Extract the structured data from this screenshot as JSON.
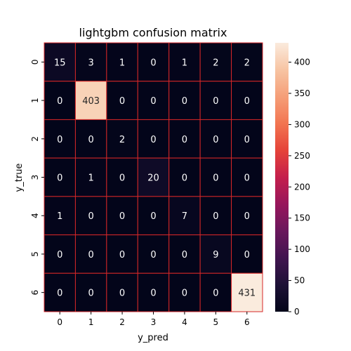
{
  "chart_data": {
    "type": "heatmap",
    "title": "lightgbm confusion matrix",
    "xlabel": "y_pred",
    "ylabel": "y_true",
    "x_categories": [
      "0",
      "1",
      "2",
      "3",
      "4",
      "5",
      "6"
    ],
    "y_categories": [
      "0",
      "1",
      "2",
      "3",
      "4",
      "5",
      "6"
    ],
    "matrix": [
      [
        15,
        3,
        1,
        0,
        1,
        2,
        2
      ],
      [
        0,
        403,
        0,
        0,
        0,
        0,
        0
      ],
      [
        0,
        0,
        2,
        0,
        0,
        0,
        0
      ],
      [
        0,
        1,
        0,
        20,
        0,
        0,
        0
      ],
      [
        1,
        0,
        0,
        0,
        7,
        0,
        0
      ],
      [
        0,
        0,
        0,
        0,
        0,
        9,
        0
      ],
      [
        0,
        0,
        0,
        0,
        0,
        0,
        431
      ]
    ],
    "colorbar": {
      "min": 0,
      "max": 431,
      "ticks": [
        0,
        50,
        100,
        150,
        200,
        250,
        300,
        350,
        400
      ],
      "colormap": "rocket"
    },
    "cell_border_color": "#d62728",
    "annotation_dark_text": "#262626",
    "annotation_light_text": "#ffffff"
  }
}
